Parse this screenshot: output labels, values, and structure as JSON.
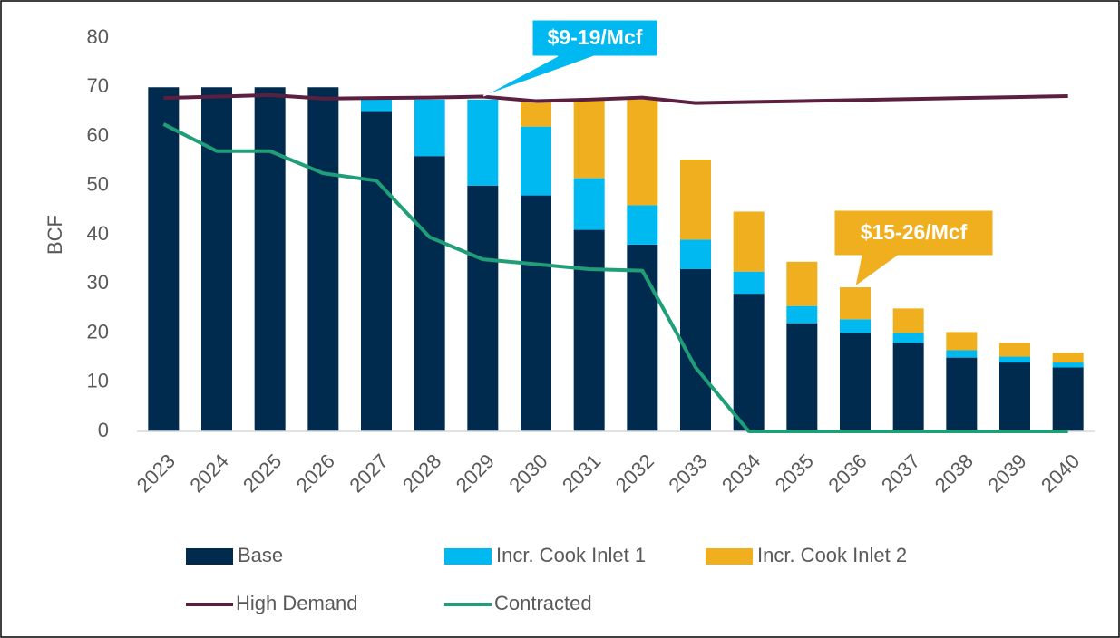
{
  "chart_data": {
    "type": "bar",
    "ylabel": "BCF",
    "categories": [
      "2023",
      "2024",
      "2025",
      "2026",
      "2027",
      "2028",
      "2029",
      "2030",
      "2031",
      "2032",
      "2033",
      "2034",
      "2035",
      "2036",
      "2037",
      "2038",
      "2039",
      "2040"
    ],
    "series": [
      {
        "name": "Base",
        "color": "#002b4f",
        "values": [
          70,
          70,
          70,
          70,
          65,
          56,
          50,
          48,
          41,
          38,
          33,
          28,
          22,
          20,
          18,
          15,
          14,
          13
        ]
      },
      {
        "name": "Incr. Cook Inlet 1",
        "color": "#00b9f1",
        "values": [
          0,
          0,
          0,
          0,
          2.5,
          11.5,
          17.5,
          14,
          10.5,
          8,
          6,
          4.5,
          3.5,
          2.8,
          2,
          1.5,
          1.2,
          1
        ]
      },
      {
        "name": "Incr. Cook Inlet 2",
        "color": "#efaf1f",
        "values": [
          0,
          0,
          0,
          0,
          0,
          0,
          0,
          5,
          16,
          21.5,
          16.3,
          12.2,
          9,
          6.5,
          5,
          3.7,
          2.8,
          2
        ]
      },
      {
        "name": "High Demand",
        "type": "line",
        "color": "#5b1f40",
        "values": [
          67.8,
          68.1,
          68.4,
          67.7,
          67.8,
          67.9,
          68.1,
          67.2,
          67.5,
          67.9,
          66.8,
          67.0,
          67.2,
          67.4,
          67.6,
          67.8,
          68.0,
          68.2
        ]
      },
      {
        "name": "Contracted",
        "type": "line",
        "color": "#1f9e78",
        "values": [
          62.5,
          57,
          57,
          52.5,
          51,
          39.5,
          35,
          34,
          33,
          32.7,
          13,
          0,
          0,
          0,
          0,
          0,
          0,
          0
        ]
      }
    ],
    "annotations": [
      {
        "text": "$9-19/Mcf",
        "color": "#00b9f1"
      },
      {
        "text": "$15-26/Mcf",
        "color": "#efaf1f"
      }
    ],
    "ylim": [
      0,
      80
    ],
    "yticks": [
      0,
      10,
      20,
      30,
      40,
      50,
      60,
      70,
      80
    ],
    "grid": false
  }
}
